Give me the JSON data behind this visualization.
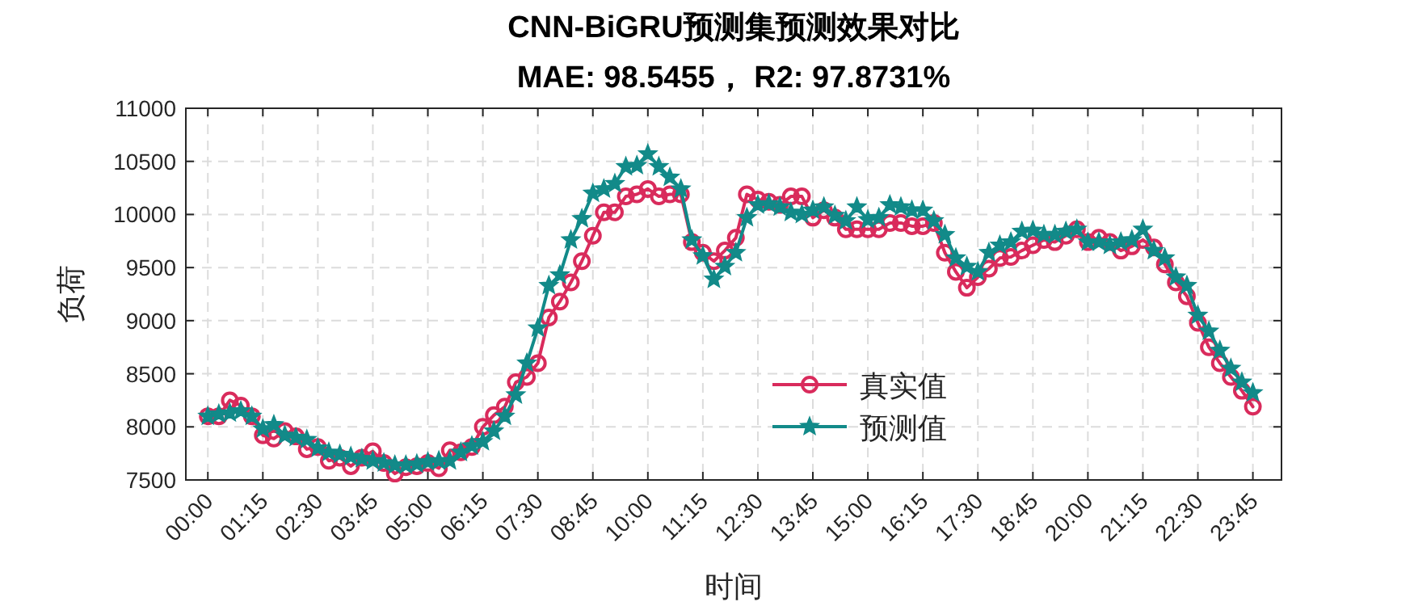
{
  "chart_data": {
    "type": "line",
    "title": "CNN-BiGRU预测集预测效果对比",
    "subtitle": "MAE: 98.5455， R2: 97.8731%",
    "xlabel": "时间",
    "ylabel": "负荷",
    "x": [
      0,
      0.25,
      0.5,
      0.75,
      1,
      1.25,
      1.5,
      1.75,
      2,
      2.25,
      2.5,
      2.75,
      3,
      3.25,
      3.5,
      3.75,
      4,
      4.25,
      4.5,
      4.75,
      5,
      5.25,
      5.5,
      5.75,
      6,
      6.25,
      6.5,
      6.75,
      7,
      7.25,
      7.5,
      7.75,
      8,
      8.25,
      8.5,
      8.75,
      9,
      9.25,
      9.5,
      9.75,
      10,
      10.25,
      10.5,
      10.75,
      11,
      11.25,
      11.5,
      11.75,
      12,
      12.25,
      12.5,
      12.75,
      13,
      13.25,
      13.5,
      13.75,
      14,
      14.25,
      14.5,
      14.75,
      15,
      15.25,
      15.5,
      15.75,
      16,
      16.25,
      16.5,
      16.75,
      17,
      17.25,
      17.5,
      17.75,
      18,
      18.25,
      18.5,
      18.75,
      19,
      19.25,
      19.5,
      19.75,
      20,
      20.25,
      20.5,
      20.75,
      21,
      21.25,
      21.5,
      21.75,
      22,
      22.25,
      22.5,
      22.75,
      23,
      23.25,
      23.5,
      23.75
    ],
    "series": [
      {
        "name": "真实值",
        "color": "#d92b5c",
        "marker": "circle",
        "values": [
          8100,
          8100,
          8250,
          8200,
          8100,
          7920,
          7890,
          7960,
          7910,
          7790,
          7810,
          7680,
          7710,
          7630,
          7710,
          7770,
          7660,
          7560,
          7620,
          7630,
          7660,
          7610,
          7780,
          7760,
          7810,
          8000,
          8110,
          8190,
          8420,
          8470,
          8600,
          9030,
          9180,
          9360,
          9560,
          9800,
          10020,
          10020,
          10170,
          10190,
          10240,
          10170,
          10190,
          10190,
          9740,
          9640,
          9560,
          9660,
          9780,
          10190,
          10140,
          10120,
          10090,
          10170,
          10170,
          9970,
          10040,
          9970,
          9860,
          9860,
          9860,
          9860,
          9920,
          9920,
          9890,
          9890,
          9920,
          9640,
          9460,
          9310,
          9410,
          9490,
          9590,
          9600,
          9660,
          9710,
          9760,
          9740,
          9800,
          9860,
          9740,
          9780,
          9740,
          9660,
          9700,
          9760,
          9690,
          9530,
          9360,
          9230,
          8980,
          8750,
          8600,
          8470,
          8340,
          8190
        ]
      },
      {
        "name": "预测值",
        "color": "#128a89",
        "marker": "star",
        "values": [
          8100,
          8120,
          8130,
          8150,
          8100,
          7980,
          8020,
          7920,
          7900,
          7880,
          7800,
          7760,
          7740,
          7720,
          7700,
          7680,
          7660,
          7640,
          7640,
          7650,
          7670,
          7680,
          7680,
          7760,
          7820,
          7860,
          7960,
          8100,
          8300,
          8600,
          8930,
          9330,
          9430,
          9760,
          9960,
          10200,
          10240,
          10290,
          10450,
          10460,
          10570,
          10450,
          10350,
          10240,
          9760,
          9610,
          9390,
          9510,
          9640,
          9970,
          10090,
          10100,
          10070,
          10020,
          10000,
          10040,
          10070,
          9990,
          9940,
          10070,
          9950,
          9970,
          10090,
          10070,
          10040,
          10040,
          9940,
          9810,
          9590,
          9510,
          9460,
          9640,
          9710,
          9740,
          9840,
          9850,
          9810,
          9810,
          9840,
          9860,
          9740,
          9740,
          9710,
          9740,
          9760,
          9860,
          9660,
          9590,
          9410,
          9330,
          9050,
          8900,
          8720,
          8550,
          8420,
          8320
        ]
      }
    ],
    "xlim": [
      -0.5,
      24.4
    ],
    "xticks": [
      {
        "value": 0,
        "label": "00:00"
      },
      {
        "value": 1.25,
        "label": "01:15"
      },
      {
        "value": 2.5,
        "label": "02:30"
      },
      {
        "value": 3.75,
        "label": "03:45"
      },
      {
        "value": 5,
        "label": "05:00"
      },
      {
        "value": 6.25,
        "label": "06:15"
      },
      {
        "value": 7.5,
        "label": "07:30"
      },
      {
        "value": 8.75,
        "label": "08:45"
      },
      {
        "value": 10,
        "label": "10:00"
      },
      {
        "value": 11.25,
        "label": "11:15"
      },
      {
        "value": 12.5,
        "label": "12:30"
      },
      {
        "value": 13.75,
        "label": "13:45"
      },
      {
        "value": 15,
        "label": "15:00"
      },
      {
        "value": 16.25,
        "label": "16:15"
      },
      {
        "value": 17.5,
        "label": "17:30"
      },
      {
        "value": 18.75,
        "label": "18:45"
      },
      {
        "value": 20,
        "label": "20:00"
      },
      {
        "value": 21.25,
        "label": "21:15"
      },
      {
        "value": 22.5,
        "label": "22:30"
      },
      {
        "value": 23.75,
        "label": "23:45"
      }
    ],
    "ylim": [
      7500,
      11000
    ],
    "yticks": [
      7500,
      8000,
      8500,
      9000,
      9500,
      10000,
      10500,
      11000
    ],
    "grid": true,
    "legend": "bottom",
    "line_style": "solid"
  }
}
